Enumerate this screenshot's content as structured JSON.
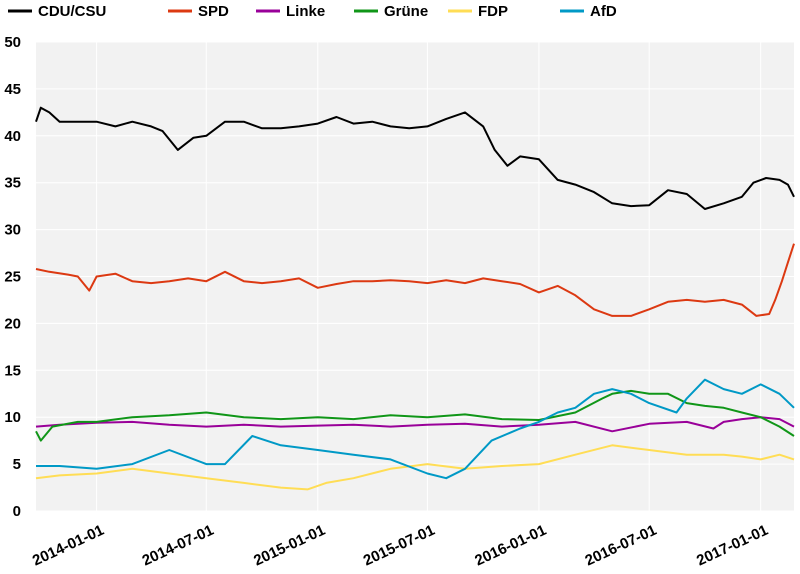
{
  "chart_data": {
    "type": "line",
    "title": "",
    "xlabel": "",
    "ylabel": "",
    "ylim": [
      0,
      50
    ],
    "yticks": [
      0,
      5,
      10,
      15,
      20,
      25,
      30,
      35,
      40,
      45,
      50
    ],
    "x_start": "2013-09-23",
    "x_end": "2017-02-25",
    "xticks": [
      "2014-01-01",
      "2014-07-01",
      "2015-01-01",
      "2015-07-01",
      "2016-01-01",
      "2016-07-01",
      "2017-01-01"
    ],
    "legend_position": "top",
    "series": [
      {
        "name": "CDU/CSU",
        "color": "#000000",
        "points": [
          [
            "2013-09-23",
            41.5
          ],
          [
            "2013-10-01",
            43.0
          ],
          [
            "2013-10-15",
            42.5
          ],
          [
            "2013-11-01",
            41.5
          ],
          [
            "2013-12-01",
            41.5
          ],
          [
            "2014-01-01",
            41.5
          ],
          [
            "2014-02-01",
            41.0
          ],
          [
            "2014-03-01",
            41.5
          ],
          [
            "2014-04-01",
            41.0
          ],
          [
            "2014-04-20",
            40.5
          ],
          [
            "2014-05-15",
            38.5
          ],
          [
            "2014-06-10",
            39.8
          ],
          [
            "2014-07-01",
            40.0
          ],
          [
            "2014-08-01",
            41.5
          ],
          [
            "2014-09-01",
            41.5
          ],
          [
            "2014-10-01",
            40.8
          ],
          [
            "2014-11-01",
            40.8
          ],
          [
            "2014-12-01",
            41.0
          ],
          [
            "2015-01-01",
            41.3
          ],
          [
            "2015-02-01",
            42.0
          ],
          [
            "2015-03-01",
            41.3
          ],
          [
            "2015-04-01",
            41.5
          ],
          [
            "2015-05-01",
            41.0
          ],
          [
            "2015-06-01",
            40.8
          ],
          [
            "2015-07-01",
            41.0
          ],
          [
            "2015-08-01",
            41.8
          ],
          [
            "2015-09-01",
            42.5
          ],
          [
            "2015-10-01",
            41.0
          ],
          [
            "2015-10-20",
            38.5
          ],
          [
            "2015-11-10",
            36.8
          ],
          [
            "2015-12-01",
            37.8
          ],
          [
            "2016-01-01",
            37.5
          ],
          [
            "2016-02-01",
            35.3
          ],
          [
            "2016-03-01",
            34.8
          ],
          [
            "2016-04-01",
            34.0
          ],
          [
            "2016-05-01",
            32.8
          ],
          [
            "2016-06-01",
            32.5
          ],
          [
            "2016-07-01",
            32.6
          ],
          [
            "2016-08-01",
            34.2
          ],
          [
            "2016-09-01",
            33.8
          ],
          [
            "2016-10-01",
            32.2
          ],
          [
            "2016-11-01",
            32.8
          ],
          [
            "2016-12-01",
            33.5
          ],
          [
            "2016-12-20",
            35.0
          ],
          [
            "2017-01-10",
            35.5
          ],
          [
            "2017-02-01",
            35.3
          ],
          [
            "2017-02-15",
            34.8
          ],
          [
            "2017-02-25",
            33.5
          ]
        ]
      },
      {
        "name": "SPD",
        "color": "#dc3912",
        "points": [
          [
            "2013-09-23",
            25.8
          ],
          [
            "2013-10-15",
            25.5
          ],
          [
            "2013-11-15",
            25.2
          ],
          [
            "2013-12-01",
            25.0
          ],
          [
            "2013-12-20",
            23.5
          ],
          [
            "2014-01-01",
            25.0
          ],
          [
            "2014-02-01",
            25.3
          ],
          [
            "2014-03-01",
            24.5
          ],
          [
            "2014-04-01",
            24.3
          ],
          [
            "2014-05-01",
            24.5
          ],
          [
            "2014-06-01",
            24.8
          ],
          [
            "2014-07-01",
            24.5
          ],
          [
            "2014-08-01",
            25.5
          ],
          [
            "2014-09-01",
            24.5
          ],
          [
            "2014-10-01",
            24.3
          ],
          [
            "2014-11-01",
            24.5
          ],
          [
            "2014-12-01",
            24.8
          ],
          [
            "2015-01-01",
            23.8
          ],
          [
            "2015-02-01",
            24.2
          ],
          [
            "2015-03-01",
            24.5
          ],
          [
            "2015-04-01",
            24.5
          ],
          [
            "2015-05-01",
            24.6
          ],
          [
            "2015-06-01",
            24.5
          ],
          [
            "2015-07-01",
            24.3
          ],
          [
            "2015-08-01",
            24.6
          ],
          [
            "2015-09-01",
            24.3
          ],
          [
            "2015-10-01",
            24.8
          ],
          [
            "2015-11-01",
            24.5
          ],
          [
            "2015-12-01",
            24.2
          ],
          [
            "2016-01-01",
            23.3
          ],
          [
            "2016-02-01",
            24.0
          ],
          [
            "2016-03-01",
            23.0
          ],
          [
            "2016-04-01",
            21.5
          ],
          [
            "2016-05-01",
            20.8
          ],
          [
            "2016-06-01",
            20.8
          ],
          [
            "2016-07-01",
            21.5
          ],
          [
            "2016-08-01",
            22.3
          ],
          [
            "2016-09-01",
            22.5
          ],
          [
            "2016-10-01",
            22.3
          ],
          [
            "2016-11-01",
            22.5
          ],
          [
            "2016-12-01",
            22.0
          ],
          [
            "2016-12-25",
            20.8
          ],
          [
            "2017-01-15",
            21.0
          ],
          [
            "2017-01-25",
            22.5
          ],
          [
            "2017-02-05",
            24.5
          ],
          [
            "2017-02-15",
            26.5
          ],
          [
            "2017-02-25",
            28.5
          ]
        ]
      },
      {
        "name": "Linke",
        "color": "#990099",
        "points": [
          [
            "2013-09-23",
            9.0
          ],
          [
            "2013-11-01",
            9.2
          ],
          [
            "2014-01-01",
            9.4
          ],
          [
            "2014-03-01",
            9.5
          ],
          [
            "2014-05-01",
            9.2
          ],
          [
            "2014-07-01",
            9.0
          ],
          [
            "2014-09-01",
            9.2
          ],
          [
            "2014-11-01",
            9.0
          ],
          [
            "2015-01-01",
            9.1
          ],
          [
            "2015-03-01",
            9.2
          ],
          [
            "2015-05-01",
            9.0
          ],
          [
            "2015-07-01",
            9.2
          ],
          [
            "2015-09-01",
            9.3
          ],
          [
            "2015-11-01",
            9.0
          ],
          [
            "2016-01-01",
            9.2
          ],
          [
            "2016-03-01",
            9.5
          ],
          [
            "2016-05-01",
            8.5
          ],
          [
            "2016-07-01",
            9.3
          ],
          [
            "2016-09-01",
            9.5
          ],
          [
            "2016-10-15",
            8.8
          ],
          [
            "2016-11-01",
            9.5
          ],
          [
            "2016-12-01",
            9.8
          ],
          [
            "2017-01-01",
            10.0
          ],
          [
            "2017-02-01",
            9.8
          ],
          [
            "2017-02-25",
            9.0
          ]
        ]
      },
      {
        "name": "Grüne",
        "color": "#109618",
        "points": [
          [
            "2013-09-23",
            8.5
          ],
          [
            "2013-10-01",
            7.5
          ],
          [
            "2013-10-20",
            9.0
          ],
          [
            "2013-12-01",
            9.5
          ],
          [
            "2014-01-01",
            9.5
          ],
          [
            "2014-03-01",
            10.0
          ],
          [
            "2014-05-01",
            10.2
          ],
          [
            "2014-07-01",
            10.5
          ],
          [
            "2014-09-01",
            10.0
          ],
          [
            "2014-11-01",
            9.8
          ],
          [
            "2015-01-01",
            10.0
          ],
          [
            "2015-03-01",
            9.8
          ],
          [
            "2015-05-01",
            10.2
          ],
          [
            "2015-07-01",
            10.0
          ],
          [
            "2015-09-01",
            10.3
          ],
          [
            "2015-11-01",
            9.8
          ],
          [
            "2016-01-01",
            9.7
          ],
          [
            "2016-03-01",
            10.5
          ],
          [
            "2016-04-15",
            12.0
          ],
          [
            "2016-05-01",
            12.5
          ],
          [
            "2016-06-01",
            12.8
          ],
          [
            "2016-07-01",
            12.5
          ],
          [
            "2016-08-01",
            12.5
          ],
          [
            "2016-09-01",
            11.5
          ],
          [
            "2016-10-01",
            11.2
          ],
          [
            "2016-11-01",
            11.0
          ],
          [
            "2016-12-01",
            10.5
          ],
          [
            "2017-01-01",
            10.0
          ],
          [
            "2017-02-01",
            9.0
          ],
          [
            "2017-02-25",
            8.0
          ]
        ]
      },
      {
        "name": "FDP",
        "color": "#ffdd55",
        "points": [
          [
            "2013-09-23",
            3.5
          ],
          [
            "2013-11-01",
            3.8
          ],
          [
            "2014-01-01",
            4.0
          ],
          [
            "2014-03-01",
            4.5
          ],
          [
            "2014-05-01",
            4.0
          ],
          [
            "2014-07-01",
            3.5
          ],
          [
            "2014-09-01",
            3.0
          ],
          [
            "2014-11-01",
            2.5
          ],
          [
            "2014-12-15",
            2.3
          ],
          [
            "2015-01-15",
            3.0
          ],
          [
            "2015-03-01",
            3.5
          ],
          [
            "2015-05-01",
            4.5
          ],
          [
            "2015-07-01",
            5.0
          ],
          [
            "2015-09-01",
            4.5
          ],
          [
            "2015-11-01",
            4.8
          ],
          [
            "2016-01-01",
            5.0
          ],
          [
            "2016-03-01",
            6.0
          ],
          [
            "2016-05-01",
            7.0
          ],
          [
            "2016-07-01",
            6.5
          ],
          [
            "2016-09-01",
            6.0
          ],
          [
            "2016-11-01",
            6.0
          ],
          [
            "2016-12-01",
            5.8
          ],
          [
            "2017-01-01",
            5.5
          ],
          [
            "2017-02-01",
            6.0
          ],
          [
            "2017-02-25",
            5.5
          ]
        ]
      },
      {
        "name": "AfD",
        "color": "#0099c6",
        "points": [
          [
            "2013-09-23",
            4.8
          ],
          [
            "2013-11-01",
            4.8
          ],
          [
            "2014-01-01",
            4.5
          ],
          [
            "2014-03-01",
            5.0
          ],
          [
            "2014-05-01",
            6.5
          ],
          [
            "2014-07-01",
            5.0
          ],
          [
            "2014-08-01",
            5.0
          ],
          [
            "2014-09-15",
            8.0
          ],
          [
            "2014-11-01",
            7.0
          ],
          [
            "2015-01-01",
            6.5
          ],
          [
            "2015-03-01",
            6.0
          ],
          [
            "2015-05-01",
            5.5
          ],
          [
            "2015-07-01",
            4.0
          ],
          [
            "2015-08-01",
            3.5
          ],
          [
            "2015-09-01",
            4.5
          ],
          [
            "2015-10-15",
            7.5
          ],
          [
            "2015-12-01",
            8.8
          ],
          [
            "2016-01-01",
            9.5
          ],
          [
            "2016-02-01",
            10.5
          ],
          [
            "2016-03-01",
            11.0
          ],
          [
            "2016-04-01",
            12.5
          ],
          [
            "2016-05-01",
            13.0
          ],
          [
            "2016-06-01",
            12.5
          ],
          [
            "2016-07-01",
            11.5
          ],
          [
            "2016-08-15",
            10.5
          ],
          [
            "2016-09-01",
            12.0
          ],
          [
            "2016-10-01",
            14.0
          ],
          [
            "2016-11-01",
            13.0
          ],
          [
            "2016-12-01",
            12.5
          ],
          [
            "2017-01-01",
            13.5
          ],
          [
            "2017-02-01",
            12.5
          ],
          [
            "2017-02-25",
            11.0
          ]
        ]
      }
    ]
  }
}
